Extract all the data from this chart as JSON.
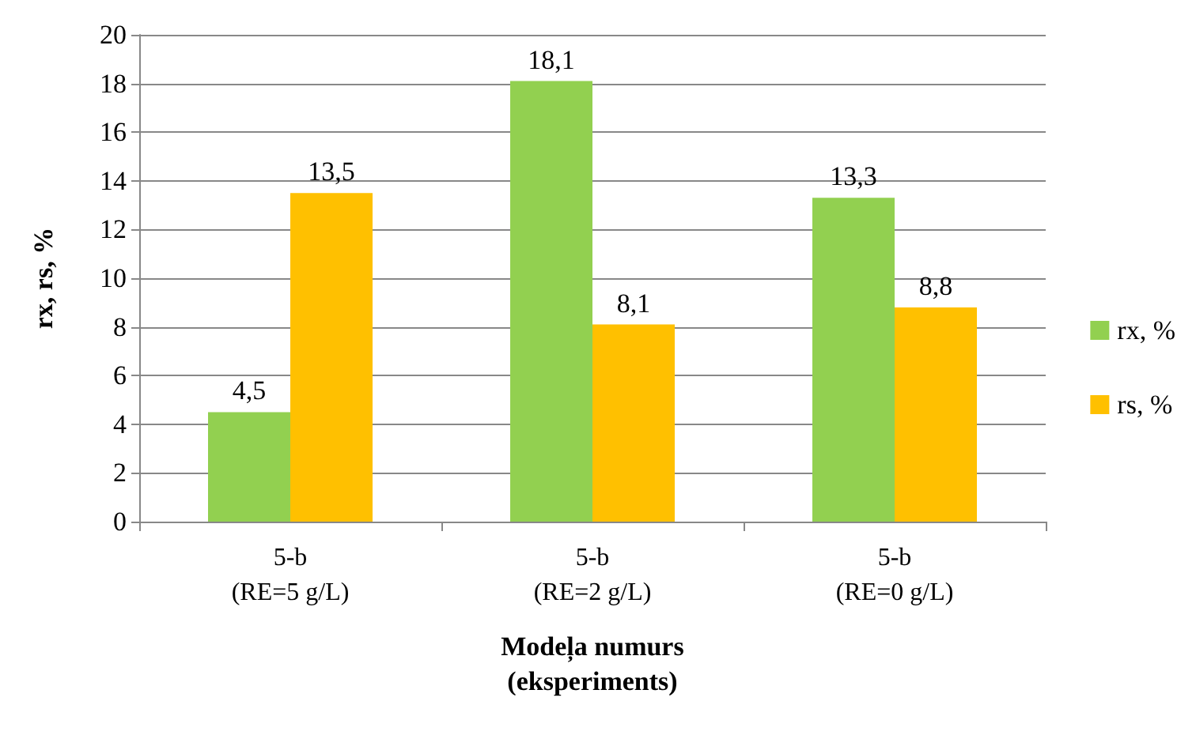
{
  "chart_data": {
    "type": "bar",
    "categories": [
      "5-b\n(RE=5 g/L)",
      "5-b\n(RE=2 g/L)",
      "5-b\n(RE=0 g/L)"
    ],
    "series": [
      {
        "name": "rx, %",
        "color": "#92d050",
        "values": [
          4.5,
          18.1,
          13.3
        ],
        "value_labels": [
          "4,5",
          "18,1",
          "13,3"
        ]
      },
      {
        "name": "rs, %",
        "color": "#ffc000",
        "values": [
          13.5,
          8.1,
          8.8
        ],
        "value_labels": [
          "13,5",
          "8,1",
          "8,8"
        ]
      }
    ],
    "xlabel": "Modeļa numurs\n(eksperiments)",
    "ylabel": "rx, rs, %",
    "ylim": [
      0,
      20
    ],
    "yticks": [
      0,
      2,
      4,
      6,
      8,
      10,
      12,
      14,
      16,
      18,
      20
    ],
    "grid": "y",
    "legend": "right"
  }
}
